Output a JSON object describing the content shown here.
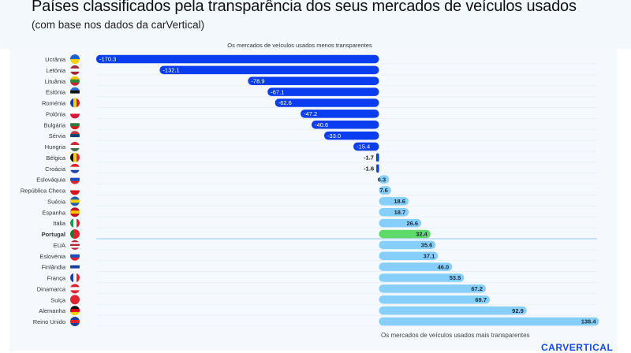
{
  "chart_data": {
    "type": "bar",
    "orientation": "horizontal",
    "title": "Países classificados pela transparência dos seus mercados de veículos usados",
    "subtitle": "(com base nos dados da carVertical)",
    "top_annotation": "Os mercados de veículos usados menos transparentes",
    "bottom_annotation": "Os mercados de veículos usados mais transparentes",
    "highlight": "Portugal",
    "grid": true,
    "colors": {
      "negative": "#0a3df0",
      "positive": "#86cffa",
      "highlight": "#5fd96a",
      "highlight_label": "#1a73e8"
    },
    "categories": [
      "Ucrânia",
      "Letónia",
      "Lituânia",
      "Estónia",
      "Roménia",
      "Polónia",
      "Bulgária",
      "Sérvia",
      "Hungria",
      "Bélgica",
      "Croácia",
      "Eslováquia",
      "República Checa",
      "Suécia",
      "Espanha",
      "Itália",
      "Portugal",
      "EUA",
      "Eslovénia",
      "Finlândia",
      "França",
      "Dinamarca",
      "Suiça",
      "Alemanha",
      "Reino Unido"
    ],
    "values": [
      -170.3,
      -132.1,
      -78.9,
      -67.1,
      -62.6,
      -47.2,
      -40.6,
      -33.0,
      -15.4,
      -1.7,
      -1.6,
      6.3,
      7.6,
      18.6,
      18.7,
      26.6,
      32.4,
      35.6,
      37.1,
      46.0,
      53.5,
      67.2,
      69.7,
      92.9,
      138.4
    ],
    "value_labels": [
      "-170.3",
      "-132.1",
      "-78.9",
      "-67.1",
      "-62.6",
      "-47.2",
      "-40.6",
      "-33.0",
      "-15.4",
      "-1.7",
      "-1.6",
      "6.3",
      "7.6",
      "18.6",
      "18.7",
      "26.6",
      "32.4",
      "35.6",
      "37.1",
      "46.0",
      "53.5",
      "67.2",
      "69.7",
      "92.9",
      "138.4"
    ],
    "flags": [
      {
        "dir": "h",
        "c": [
          "#1f5fd0",
          "#f7d100"
        ]
      },
      {
        "dir": "h",
        "c": [
          "#9e2b37",
          "#ffffff",
          "#9e2b37"
        ]
      },
      {
        "dir": "h",
        "c": [
          "#f7c300",
          "#2f8a3c",
          "#c1272d"
        ]
      },
      {
        "dir": "h",
        "c": [
          "#2e6fd6",
          "#111111",
          "#ffffff"
        ]
      },
      {
        "dir": "v",
        "c": [
          "#1a3fa8",
          "#f7d100",
          "#d01c1f"
        ]
      },
      {
        "dir": "h",
        "c": [
          "#ffffff",
          "#dc143c"
        ]
      },
      {
        "dir": "h",
        "c": [
          "#ffffff",
          "#2f7a3c",
          "#d01c1f"
        ]
      },
      {
        "dir": "h",
        "c": [
          "#c6363c",
          "#0c4076",
          "#ffffff"
        ]
      },
      {
        "dir": "h",
        "c": [
          "#ce2939",
          "#ffffff",
          "#477050"
        ]
      },
      {
        "dir": "v",
        "c": [
          "#111111",
          "#f7d100",
          "#e0242f"
        ]
      },
      {
        "dir": "h",
        "c": [
          "#e0242f",
          "#ffffff",
          "#1a3fa8"
        ]
      },
      {
        "dir": "h",
        "c": [
          "#ffffff",
          "#1a4fc0",
          "#e0242f"
        ]
      },
      {
        "dir": "h",
        "c": [
          "#ffffff",
          "#d7141a"
        ]
      },
      {
        "dir": "h",
        "c": [
          "#1f5fb0",
          "#f7d100",
          "#1f5fb0"
        ]
      },
      {
        "dir": "h",
        "c": [
          "#c60b1e",
          "#ffc400",
          "#c60b1e"
        ]
      },
      {
        "dir": "v",
        "c": [
          "#1f9a4a",
          "#ffffff",
          "#e0242f"
        ]
      },
      {
        "dir": "v",
        "c": [
          "#1a7a2a",
          "#e0242f",
          "#e0242f"
        ]
      },
      {
        "dir": "h",
        "c": [
          "#b22234",
          "#ffffff",
          "#b22234",
          "#ffffff",
          "#b22234"
        ]
      },
      {
        "dir": "h",
        "c": [
          "#ffffff",
          "#1a4fc0",
          "#e0242f"
        ]
      },
      {
        "dir": "h",
        "c": [
          "#ffffff",
          "#1a3f9a",
          "#ffffff"
        ]
      },
      {
        "dir": "v",
        "c": [
          "#1a3fa8",
          "#ffffff",
          "#e0242f"
        ]
      },
      {
        "dir": "h",
        "c": [
          "#e0242f",
          "#ffffff",
          "#e0242f"
        ]
      },
      {
        "dir": "h",
        "c": [
          "#e0242f",
          "#e0242f"
        ]
      },
      {
        "dir": "h",
        "c": [
          "#111111",
          "#dd0000",
          "#ffce00"
        ]
      },
      {
        "dir": "h",
        "c": [
          "#1a3f9a",
          "#e0242f",
          "#1a3f9a"
        ]
      }
    ]
  },
  "brand": {
    "logo": "carVertical"
  }
}
